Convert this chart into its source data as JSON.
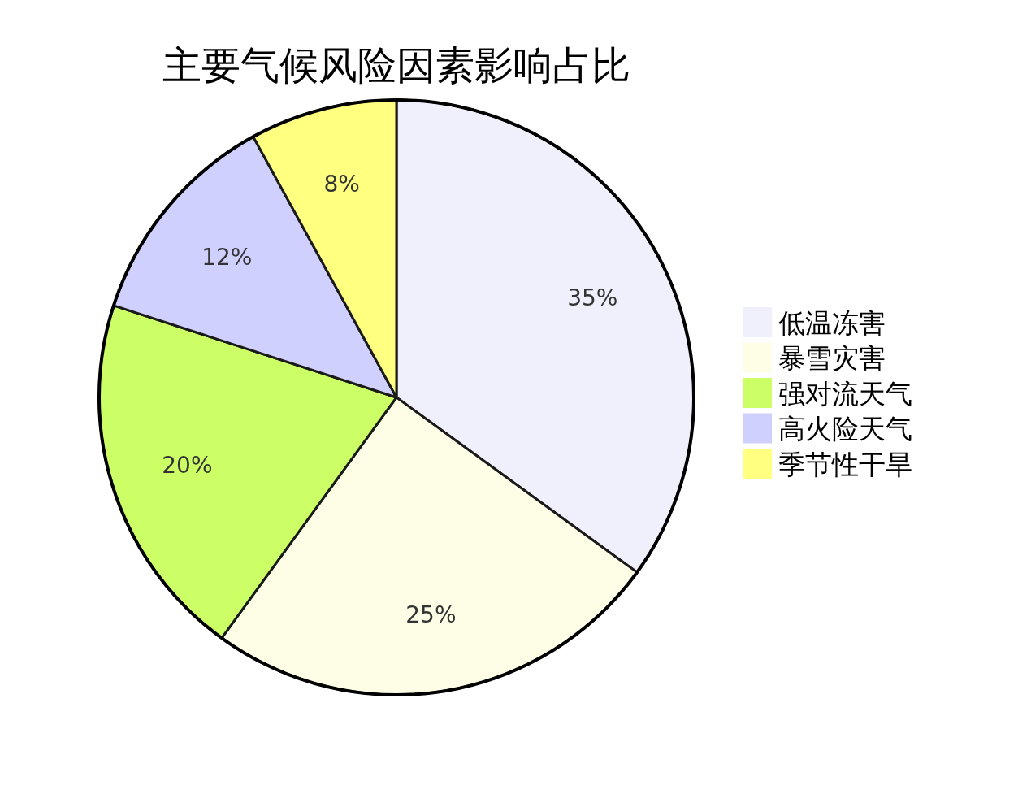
{
  "chart_data": {
    "type": "pie",
    "title": "主要气候风险因素影响占比",
    "categories": [
      "低温冻害",
      "暴雪灾害",
      "强对流天气",
      "高火险天气",
      "季节性干旱"
    ],
    "values": [
      35,
      25,
      20,
      12,
      8
    ],
    "colors": [
      "#f0f0fc",
      "#fefee6",
      "#ccff66",
      "#d0d0ff",
      "#ffff80"
    ],
    "value_labels": [
      "35%",
      "25%",
      "20%",
      "12%",
      "8%"
    ],
    "legend": "right"
  }
}
